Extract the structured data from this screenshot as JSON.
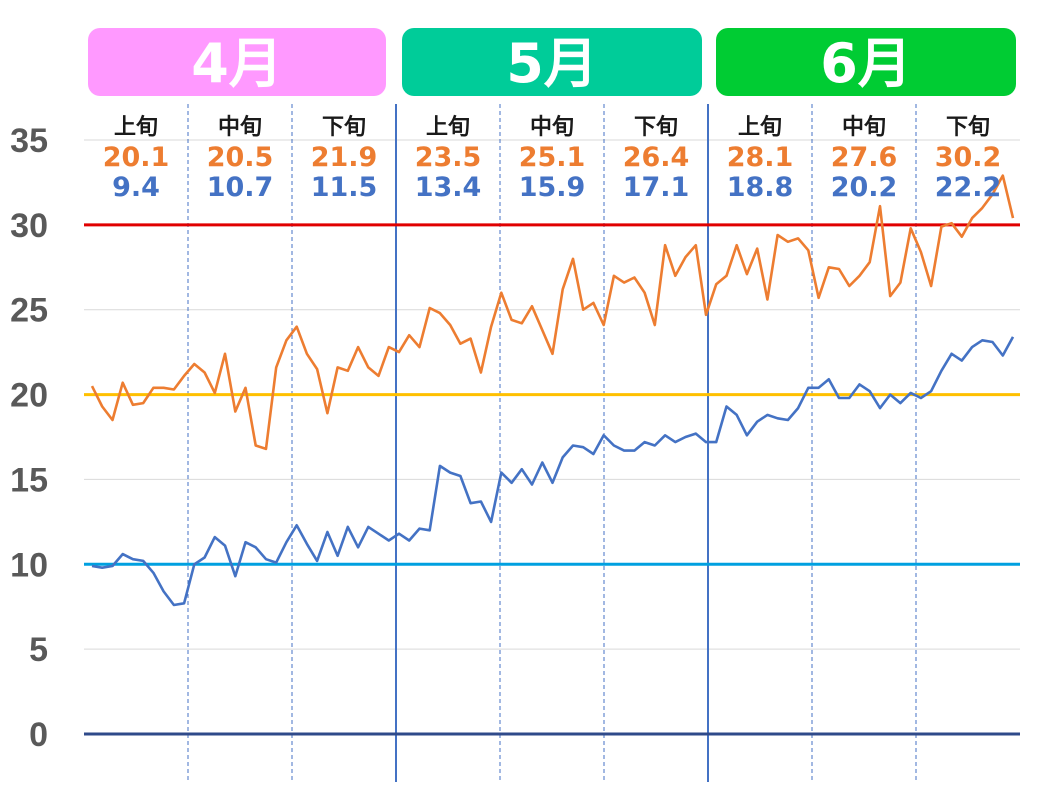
{
  "chart_data": {
    "type": "line",
    "title": "",
    "xlabel": "",
    "ylabel": "",
    "ylim": [
      0,
      35
    ],
    "yticks": [
      0,
      5,
      10,
      15,
      20,
      25,
      30,
      35
    ],
    "grid": true,
    "months": [
      {
        "label": "4月",
        "color": "#ff99ff"
      },
      {
        "label": "5月",
        "color": "#00cc99"
      },
      {
        "label": "6月",
        "color": "#00cc33"
      }
    ],
    "periods": [
      {
        "label": "上旬",
        "avg_max": "20.1",
        "avg_min": "9.4"
      },
      {
        "label": "中旬",
        "avg_max": "20.5",
        "avg_min": "10.7"
      },
      {
        "label": "下旬",
        "avg_max": "21.9",
        "avg_min": "11.5"
      },
      {
        "label": "上旬",
        "avg_max": "23.5",
        "avg_min": "13.4"
      },
      {
        "label": "中旬",
        "avg_max": "25.1",
        "avg_min": "15.9"
      },
      {
        "label": "下旬",
        "avg_max": "26.4",
        "avg_min": "17.1"
      },
      {
        "label": "上旬",
        "avg_max": "28.1",
        "avg_min": "18.8"
      },
      {
        "label": "中旬",
        "avg_max": "27.6",
        "avg_min": "20.2"
      },
      {
        "label": "下旬",
        "avg_max": "30.2",
        "avg_min": "22.2"
      }
    ],
    "reference_lines": [
      {
        "value": 30,
        "color": "#e00000"
      },
      {
        "value": 20,
        "color": "#ffc000"
      },
      {
        "value": 10,
        "color": "#00a0e0"
      },
      {
        "value": 0,
        "color": "#2f4a8a"
      }
    ],
    "series": [
      {
        "color": "#ed7d31",
        "values": [
          20.5,
          19.3,
          18.5,
          20.7,
          19.4,
          19.5,
          20.4,
          20.4,
          20.3,
          21.1,
          21.8,
          21.3,
          20.1,
          22.4,
          19.0,
          20.4,
          17.0,
          16.8,
          21.6,
          23.2,
          24.0,
          22.4,
          21.5,
          18.9,
          21.6,
          21.4,
          22.8,
          21.6,
          21.1,
          22.8,
          22.5,
          23.5,
          22.8,
          25.1,
          24.8,
          24.1,
          23.0,
          23.3,
          21.3,
          24.0,
          26.0,
          24.4,
          24.2,
          25.2,
          23.8,
          22.4,
          26.2,
          28.0,
          25.0,
          25.4,
          24.1,
          27.0,
          26.6,
          26.9,
          26.0,
          24.1,
          28.8,
          27.0,
          28.1,
          28.8,
          24.7,
          26.5,
          27.0,
          28.8,
          27.1,
          28.6,
          25.6,
          29.4,
          29.0,
          29.2,
          28.5,
          25.7,
          27.5,
          27.4,
          26.4,
          27.0,
          27.8,
          31.1,
          25.8,
          26.6,
          29.8,
          28.4,
          26.4,
          29.9,
          30.1,
          29.3,
          30.4,
          31.0,
          31.8,
          32.9,
          30.4
        ]
      },
      {
        "color": "#4472c4",
        "values": [
          9.9,
          9.8,
          9.9,
          10.6,
          10.3,
          10.2,
          9.5,
          8.4,
          7.6,
          7.7,
          10.0,
          10.4,
          11.6,
          11.1,
          9.3,
          11.3,
          11.0,
          10.3,
          10.1,
          11.3,
          12.3,
          11.2,
          10.2,
          11.9,
          10.5,
          12.2,
          11.0,
          12.2,
          11.8,
          11.4,
          11.8,
          11.4,
          12.1,
          12.0,
          15.8,
          15.4,
          15.2,
          13.6,
          13.7,
          12.5,
          15.4,
          14.8,
          15.6,
          14.7,
          16.0,
          14.8,
          16.3,
          17.0,
          16.9,
          16.5,
          17.6,
          17.0,
          16.7,
          16.7,
          17.2,
          17.0,
          17.6,
          17.2,
          17.5,
          17.7,
          17.2,
          17.2,
          19.3,
          18.8,
          17.6,
          18.4,
          18.8,
          18.6,
          18.5,
          19.2,
          20.4,
          20.4,
          20.9,
          19.8,
          19.8,
          20.6,
          20.2,
          19.2,
          20.0,
          19.5,
          20.1,
          19.8,
          20.2,
          21.4,
          22.4,
          22.0,
          22.8,
          23.2,
          23.1,
          22.3,
          23.4
        ]
      }
    ]
  }
}
